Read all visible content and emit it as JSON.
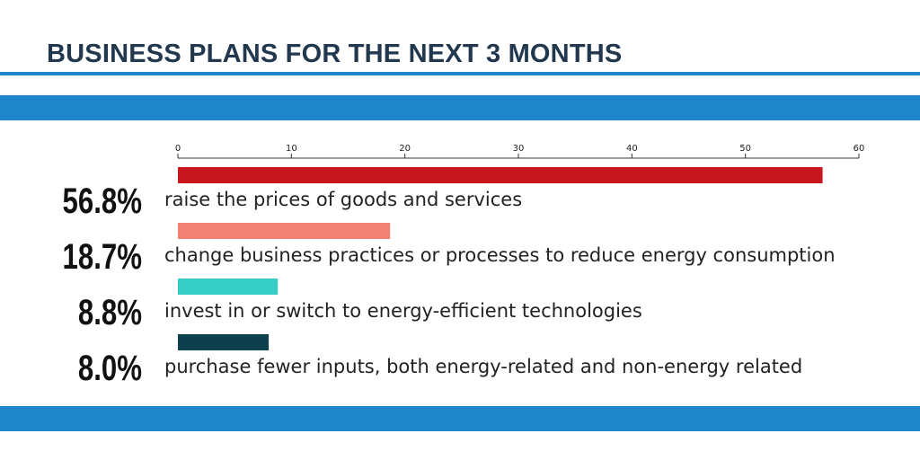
{
  "header": {
    "title": "BUSINESS PLANS FOR THE NEXT 3 MONTHS"
  },
  "colors": {
    "band": "#1f86cb",
    "title": "#21384f"
  },
  "chart_data": {
    "type": "bar",
    "orientation": "horizontal",
    "xlim": [
      0,
      60
    ],
    "xticks": [
      0,
      10,
      20,
      30,
      40,
      50,
      60
    ],
    "grid": false,
    "legend": "none",
    "categories": [
      "raise the prices of goods and services",
      "change business practices or processes to reduce energy consumption",
      "invest in or switch to energy-efficient technologies",
      "purchase fewer inputs, both energy-related and non-energy related"
    ],
    "values": [
      56.8,
      18.7,
      8.8,
      8.0
    ],
    "value_labels": [
      "56.8%",
      "18.7%",
      "8.8%",
      "8.0%"
    ],
    "bar_colors": [
      "#c8161f",
      "#f38173",
      "#36cdc5",
      "#0d3f4f"
    ]
  }
}
